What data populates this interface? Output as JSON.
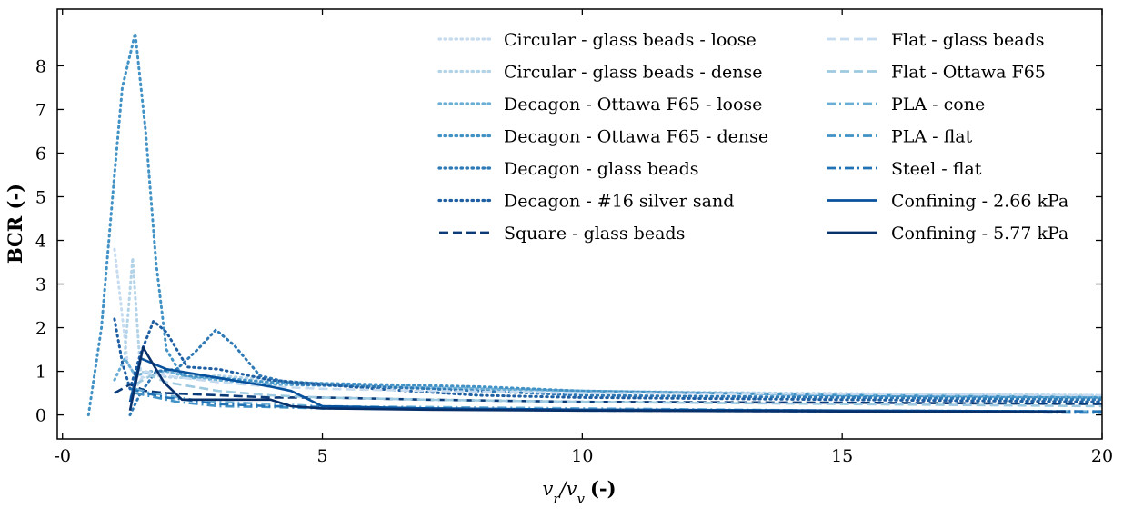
{
  "chart_data": {
    "type": "line",
    "title": "",
    "xlabel_var": "v",
    "xlabel_sub_r": "r",
    "xlabel_slash": "/",
    "xlabel_sub_v": "v",
    "xlabel_unit": "(-)",
    "ylabel": "BCR  (-)",
    "xlim": [
      -0.1,
      20
    ],
    "ylim": [
      -0.55,
      9.3
    ],
    "xticks": [
      0,
      5,
      10,
      15,
      20
    ],
    "xtick_labels": [
      "-0",
      "5",
      "10",
      "15",
      "20"
    ],
    "yticks": [
      0,
      1,
      2,
      3,
      4,
      5,
      6,
      7,
      8
    ],
    "ytick_labels": [
      "0",
      "1",
      "2",
      "3",
      "4",
      "5",
      "6",
      "7",
      "8"
    ],
    "legend_placement": "upper-right",
    "grid": false,
    "series": [
      {
        "name": "Circular - glass beads - loose",
        "color": "#c6dbef",
        "dash": "dotted",
        "x": [
          1.0,
          1.1,
          1.25,
          1.4,
          1.6,
          2.0,
          3.0,
          4.0,
          6.0,
          8.0,
          10.0,
          12.0,
          15.0,
          18.0,
          20.0
        ],
        "y": [
          3.8,
          2.8,
          1.2,
          0.9,
          0.85,
          1.0,
          0.85,
          0.75,
          0.65,
          0.6,
          0.55,
          0.5,
          0.48,
          0.45,
          0.42
        ]
      },
      {
        "name": "Circular - glass beads - dense",
        "color": "#b3d3e8",
        "dash": "dotted",
        "x": [
          1.2,
          1.35,
          1.5,
          1.8,
          2.2,
          3.0,
          4.0,
          6.0,
          8.0,
          10.0,
          14.0,
          20.0
        ],
        "y": [
          1.4,
          3.6,
          1.0,
          0.9,
          0.85,
          0.9,
          0.8,
          0.65,
          0.6,
          0.55,
          0.5,
          0.45
        ]
      },
      {
        "name": "Decagon - Ottawa F65 - loose",
        "color": "#6aaed6",
        "dash": "dotted",
        "x": [
          1.0,
          1.2,
          1.4,
          1.7,
          2.0,
          2.5,
          3.0,
          4.0,
          6.0,
          8.0,
          10.0,
          15.0,
          20.0
        ],
        "y": [
          0.8,
          1.3,
          0.9,
          1.0,
          1.0,
          0.85,
          0.8,
          0.7,
          0.65,
          0.6,
          0.55,
          0.45,
          0.4
        ]
      },
      {
        "name": "Decagon - Ottawa F65 - dense",
        "color": "#4292c6",
        "dash": "dotted",
        "x": [
          0.5,
          0.75,
          1.0,
          1.15,
          1.4,
          1.6,
          1.8,
          2.0,
          2.3,
          3.0,
          4.0,
          6.0,
          8.0,
          10.0,
          15.0,
          20.0
        ],
        "y": [
          0.0,
          2.0,
          5.5,
          7.5,
          8.75,
          6.5,
          3.5,
          1.5,
          0.9,
          0.85,
          0.75,
          0.7,
          0.65,
          0.55,
          0.45,
          0.4
        ]
      },
      {
        "name": "Decagon - glass beads",
        "color": "#2f79b5",
        "dash": "dotted",
        "x": [
          1.3,
          1.5,
          1.8,
          2.2,
          2.6,
          2.95,
          3.3,
          3.8,
          4.5,
          6.0,
          8.0,
          10.0,
          15.0,
          20.0
        ],
        "y": [
          0.0,
          0.5,
          1.0,
          1.05,
          1.5,
          1.95,
          1.6,
          0.9,
          0.7,
          0.65,
          0.55,
          0.45,
          0.4,
          0.35
        ]
      },
      {
        "name": "Decagon - #16 silver sand",
        "color": "#1f5fa3",
        "dash": "dotted",
        "x": [
          1.0,
          1.15,
          1.3,
          1.5,
          1.75,
          2.0,
          2.4,
          3.0,
          4.0,
          6.0,
          8.0,
          10.0,
          15.0,
          20.0
        ],
        "y": [
          2.2,
          1.2,
          0.6,
          1.4,
          2.15,
          1.9,
          1.1,
          1.05,
          0.8,
          0.6,
          0.45,
          0.4,
          0.35,
          0.3
        ]
      },
      {
        "name": "Square - glass beads",
        "color": "#0a3b78",
        "dash": "dashed",
        "x": [
          1.0,
          1.3,
          1.6,
          2.0,
          3.0,
          4.0,
          5.0,
          7.0,
          10.0,
          15.0,
          20.0
        ],
        "y": [
          0.5,
          0.7,
          0.55,
          0.5,
          0.45,
          0.4,
          0.4,
          0.35,
          0.3,
          0.28,
          0.25
        ]
      },
      {
        "name": "Flat - glass beads",
        "color": "#c6dbef",
        "dash": "dashed",
        "x": [
          1.3,
          1.6,
          2.0,
          3.0,
          4.0,
          5.0,
          7.0,
          10.0,
          15.0,
          20.0
        ],
        "y": [
          0.4,
          1.0,
          0.9,
          0.75,
          0.65,
          0.6,
          0.55,
          0.5,
          0.48,
          0.45
        ]
      },
      {
        "name": "Flat - Ottawa F65",
        "color": "#9ecae1",
        "dash": "dashed",
        "x": [
          1.4,
          1.7,
          2.0,
          3.0,
          4.0,
          5.0,
          7.0,
          10.0,
          15.0,
          20.0
        ],
        "y": [
          0.7,
          0.9,
          0.75,
          0.55,
          0.45,
          0.4,
          0.35,
          0.3,
          0.25,
          0.2
        ]
      },
      {
        "name": "PLA - cone",
        "color": "#6aaed6",
        "dash": "dashdot",
        "x": [
          1.4,
          1.7,
          2.0,
          2.5,
          3.0,
          4.0,
          5.0,
          7.0,
          10.0,
          15.0,
          20.0
        ],
        "y": [
          0.6,
          0.5,
          0.45,
          0.35,
          0.3,
          0.25,
          0.2,
          0.18,
          0.15,
          0.1,
          0.08
        ]
      },
      {
        "name": "PLA - flat",
        "color": "#4292c6",
        "dash": "dashdot",
        "x": [
          1.4,
          1.8,
          2.2,
          3.0,
          4.0,
          5.0,
          7.0,
          10.0,
          15.0,
          20.0
        ],
        "y": [
          0.5,
          0.4,
          0.3,
          0.2,
          0.18,
          0.15,
          0.13,
          0.1,
          0.08,
          0.05
        ]
      },
      {
        "name": "Steel - flat",
        "color": "#2171b5",
        "dash": "dashdot",
        "x": [
          1.3,
          1.6,
          2.0,
          3.0,
          4.0,
          5.0,
          7.0,
          10.0,
          15.0,
          20.0
        ],
        "y": [
          0.6,
          0.5,
          0.4,
          0.25,
          0.2,
          0.18,
          0.15,
          0.12,
          0.1,
          0.08
        ]
      },
      {
        "name": "Confining - 2.66 kPa",
        "color": "#08519c",
        "dash": "solid",
        "x": [
          1.3,
          1.5,
          2.0,
          3.0,
          4.0,
          4.4,
          5.0,
          7.0,
          10.0,
          15.0,
          19.3
        ],
        "y": [
          0.3,
          1.3,
          1.05,
          0.85,
          0.65,
          0.55,
          0.2,
          0.15,
          0.12,
          0.1,
          0.08
        ]
      },
      {
        "name": "Confining - 5.77 kPa",
        "color": "#08306b",
        "dash": "solid",
        "x": [
          1.3,
          1.55,
          1.95,
          2.3,
          3.0,
          4.0,
          4.4,
          5.0,
          7.0,
          10.0,
          15.0,
          19.3
        ],
        "y": [
          0.1,
          1.55,
          0.75,
          0.35,
          0.35,
          0.35,
          0.2,
          0.15,
          0.12,
          0.1,
          0.08,
          0.07
        ]
      }
    ]
  }
}
